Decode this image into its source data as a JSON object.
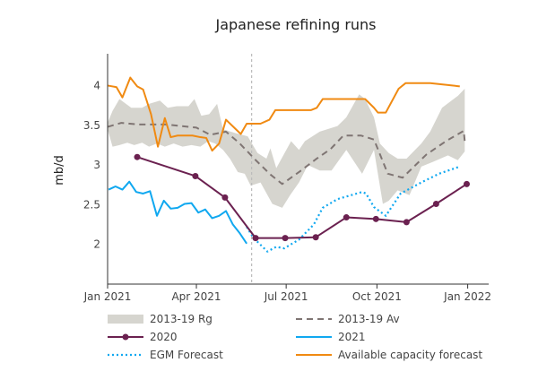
{
  "chart_data": {
    "type": "line",
    "title": "Japanese refining runs",
    "xlabel": "",
    "ylabel": "mb/d",
    "xlim": [
      "2021-01-01",
      "2022-01-25"
    ],
    "ylim": [
      1.5,
      4.4
    ],
    "x_ticks": [
      {
        "date": "2021-01-01",
        "label": "Jan 2021"
      },
      {
        "date": "2021-04-01",
        "label": "Apr 2021"
      },
      {
        "date": "2021-07-01",
        "label": "Jul 2021"
      },
      {
        "date": "2021-10-01",
        "label": "Oct 2021"
      },
      {
        "date": "2022-01-01",
        "label": "Jan 2022"
      }
    ],
    "y_ticks": [
      2,
      2.5,
      3,
      3.5,
      4
    ],
    "grid": false,
    "legend_position": "bottom",
    "forecast_divider": "2021-05-27",
    "band": {
      "name": "2013-19 Rg",
      "color": "#d6d5cf",
      "upper": [
        [
          "2021-01-01",
          3.53
        ],
        [
          "2021-01-06",
          3.68
        ],
        [
          "2021-01-13",
          3.83
        ],
        [
          "2021-01-25",
          3.72
        ],
        [
          "2021-02-05",
          3.72
        ],
        [
          "2021-02-12",
          3.77
        ],
        [
          "2021-02-23",
          3.81
        ],
        [
          "2021-03-03",
          3.72
        ],
        [
          "2021-03-12",
          3.74
        ],
        [
          "2021-03-24",
          3.74
        ],
        [
          "2021-03-30",
          3.83
        ],
        [
          "2021-04-06",
          3.62
        ],
        [
          "2021-04-14",
          3.64
        ],
        [
          "2021-04-22",
          3.77
        ],
        [
          "2021-04-28",
          3.45
        ],
        [
          "2021-05-11",
          3.4
        ],
        [
          "2021-05-23",
          3.36
        ],
        [
          "2021-06-02",
          3.15
        ],
        [
          "2021-06-11",
          3.08
        ],
        [
          "2021-06-15",
          3.21
        ],
        [
          "2021-06-21",
          2.96
        ],
        [
          "2021-07-06",
          3.3
        ],
        [
          "2021-07-14",
          3.19
        ],
        [
          "2021-07-20",
          3.3
        ],
        [
          "2021-08-04",
          3.42
        ],
        [
          "2021-08-22",
          3.49
        ],
        [
          "2021-08-31",
          3.6
        ],
        [
          "2021-09-13",
          3.89
        ],
        [
          "2021-09-19",
          3.83
        ],
        [
          "2021-09-28",
          3.6
        ],
        [
          "2021-10-04",
          3.27
        ],
        [
          "2021-10-13",
          3.15
        ],
        [
          "2021-10-22",
          3.08
        ],
        [
          "2021-10-31",
          3.08
        ],
        [
          "2021-11-15",
          3.27
        ],
        [
          "2021-11-24",
          3.42
        ],
        [
          "2021-12-06",
          3.72
        ],
        [
          "2021-12-22",
          3.87
        ],
        [
          "2021-12-29",
          3.96
        ]
      ],
      "lower": [
        [
          "2021-01-01",
          3.45
        ],
        [
          "2021-01-06",
          3.23
        ],
        [
          "2021-01-13",
          3.25
        ],
        [
          "2021-01-21",
          3.28
        ],
        [
          "2021-01-28",
          3.25
        ],
        [
          "2021-02-05",
          3.28
        ],
        [
          "2021-02-12",
          3.23
        ],
        [
          "2021-02-20",
          3.27
        ],
        [
          "2021-02-28",
          3.23
        ],
        [
          "2021-03-09",
          3.27
        ],
        [
          "2021-03-18",
          3.23
        ],
        [
          "2021-03-27",
          3.25
        ],
        [
          "2021-04-05",
          3.23
        ],
        [
          "2021-04-13",
          3.3
        ],
        [
          "2021-04-20",
          3.27
        ],
        [
          "2021-04-28",
          3.19
        ],
        [
          "2021-05-05",
          3.08
        ],
        [
          "2021-05-13",
          2.91
        ],
        [
          "2021-05-20",
          2.89
        ],
        [
          "2021-05-26",
          2.74
        ],
        [
          "2021-06-05",
          2.78
        ],
        [
          "2021-06-17",
          2.51
        ],
        [
          "2021-06-27",
          2.46
        ],
        [
          "2021-07-05",
          2.62
        ],
        [
          "2021-07-14",
          2.78
        ],
        [
          "2021-07-23",
          3.0
        ],
        [
          "2021-08-04",
          2.93
        ],
        [
          "2021-08-16",
          2.93
        ],
        [
          "2021-08-31",
          3.19
        ],
        [
          "2021-09-16",
          2.89
        ],
        [
          "2021-09-28",
          3.19
        ],
        [
          "2021-10-07",
          2.51
        ],
        [
          "2021-10-13",
          2.55
        ],
        [
          "2021-10-22",
          2.68
        ],
        [
          "2021-11-03",
          2.62
        ],
        [
          "2021-11-15",
          2.98
        ],
        [
          "2021-11-27",
          3.04
        ],
        [
          "2021-12-12",
          3.12
        ],
        [
          "2021-12-22",
          3.06
        ],
        [
          "2021-12-29",
          3.17
        ]
      ]
    },
    "series": [
      {
        "name": "2013-19 Av",
        "color": "#7f7573",
        "style": "dashed",
        "points": [
          [
            "2021-01-01",
            3.48
          ],
          [
            "2021-01-15",
            3.53
          ],
          [
            "2021-02-01",
            3.51
          ],
          [
            "2021-03-01",
            3.51
          ],
          [
            "2021-04-01",
            3.47
          ],
          [
            "2021-04-15",
            3.38
          ],
          [
            "2021-05-01",
            3.42
          ],
          [
            "2021-05-15",
            3.27
          ],
          [
            "2021-06-01",
            3.05
          ],
          [
            "2021-06-15",
            2.88
          ],
          [
            "2021-06-27",
            2.76
          ],
          [
            "2021-07-15",
            2.92
          ],
          [
            "2021-08-01",
            3.08
          ],
          [
            "2021-08-15",
            3.2
          ],
          [
            "2021-08-28",
            3.37
          ],
          [
            "2021-09-15",
            3.37
          ],
          [
            "2021-09-28",
            3.32
          ],
          [
            "2021-10-12",
            2.89
          ],
          [
            "2021-10-27",
            2.84
          ],
          [
            "2021-11-20",
            3.13
          ],
          [
            "2021-12-10",
            3.3
          ],
          [
            "2021-12-28",
            3.43
          ],
          [
            "2021-12-29",
            3.3
          ]
        ]
      },
      {
        "name": "2020",
        "color": "#6b2150",
        "style": "solid-markers",
        "points": [
          [
            "2021-01-31",
            3.1
          ],
          [
            "2021-03-31",
            2.86
          ],
          [
            "2021-04-30",
            2.59
          ],
          [
            "2021-05-31",
            2.08
          ],
          [
            "2021-06-30",
            2.08
          ],
          [
            "2021-07-31",
            2.09
          ],
          [
            "2021-08-31",
            2.34
          ],
          [
            "2021-09-30",
            2.32
          ],
          [
            "2021-10-31",
            2.28
          ],
          [
            "2021-11-30",
            2.51
          ],
          [
            "2021-12-31",
            2.76
          ]
        ]
      },
      {
        "name": "2021",
        "color": "#10a8f0",
        "style": "solid",
        "points": [
          [
            "2021-01-02",
            2.69
          ],
          [
            "2021-01-09",
            2.73
          ],
          [
            "2021-01-16",
            2.69
          ],
          [
            "2021-01-23",
            2.79
          ],
          [
            "2021-01-30",
            2.66
          ],
          [
            "2021-02-06",
            2.64
          ],
          [
            "2021-02-13",
            2.67
          ],
          [
            "2021-02-20",
            2.36
          ],
          [
            "2021-02-27",
            2.55
          ],
          [
            "2021-03-06",
            2.45
          ],
          [
            "2021-03-13",
            2.46
          ],
          [
            "2021-03-20",
            2.51
          ],
          [
            "2021-03-27",
            2.52
          ],
          [
            "2021-04-03",
            2.4
          ],
          [
            "2021-04-10",
            2.44
          ],
          [
            "2021-04-17",
            2.33
          ],
          [
            "2021-04-24",
            2.36
          ],
          [
            "2021-05-01",
            2.42
          ],
          [
            "2021-05-08",
            2.25
          ],
          [
            "2021-05-15",
            2.14
          ],
          [
            "2021-05-22",
            2.01
          ]
        ]
      },
      {
        "name": "EGM Forecast",
        "color": "#10a8f0",
        "style": "dotted",
        "points": [
          [
            "2021-05-22",
            2.22
          ],
          [
            "2021-05-29",
            2.08
          ],
          [
            "2021-06-12",
            1.91
          ],
          [
            "2021-06-21",
            1.97
          ],
          [
            "2021-06-29",
            1.95
          ],
          [
            "2021-07-14",
            2.06
          ],
          [
            "2021-07-29",
            2.25
          ],
          [
            "2021-08-07",
            2.46
          ],
          [
            "2021-08-22",
            2.57
          ],
          [
            "2021-09-16",
            2.66
          ],
          [
            "2021-09-20",
            2.64
          ],
          [
            "2021-09-28",
            2.47
          ],
          [
            "2021-10-10",
            2.36
          ],
          [
            "2021-10-25",
            2.64
          ],
          [
            "2021-11-15",
            2.78
          ],
          [
            "2021-12-03",
            2.89
          ],
          [
            "2021-12-24",
            2.98
          ]
        ]
      },
      {
        "name": "Available capacity forecast",
        "color": "#f08a12",
        "style": "solid",
        "points": [
          [
            "2021-01-01",
            4.0
          ],
          [
            "2021-01-10",
            3.98
          ],
          [
            "2021-01-16",
            3.85
          ],
          [
            "2021-01-24",
            4.1
          ],
          [
            "2021-01-31",
            3.99
          ],
          [
            "2021-02-06",
            3.95
          ],
          [
            "2021-02-14",
            3.64
          ],
          [
            "2021-02-21",
            3.23
          ],
          [
            "2021-02-28",
            3.59
          ],
          [
            "2021-03-06",
            3.35
          ],
          [
            "2021-03-13",
            3.37
          ],
          [
            "2021-03-28",
            3.37
          ],
          [
            "2021-04-05",
            3.35
          ],
          [
            "2021-04-11",
            3.34
          ],
          [
            "2021-04-17",
            3.18
          ],
          [
            "2021-04-24",
            3.27
          ],
          [
            "2021-05-01",
            3.57
          ],
          [
            "2021-05-16",
            3.39
          ],
          [
            "2021-05-22",
            3.52
          ],
          [
            "2021-06-05",
            3.52
          ],
          [
            "2021-06-14",
            3.57
          ],
          [
            "2021-06-20",
            3.69
          ],
          [
            "2021-07-26",
            3.69
          ],
          [
            "2021-08-01",
            3.72
          ],
          [
            "2021-08-07",
            3.83
          ],
          [
            "2021-09-19",
            3.83
          ],
          [
            "2021-09-28",
            3.72
          ],
          [
            "2021-10-02",
            3.66
          ],
          [
            "2021-10-10",
            3.66
          ],
          [
            "2021-10-23",
            3.96
          ],
          [
            "2021-10-30",
            4.03
          ],
          [
            "2021-11-24",
            4.03
          ],
          [
            "2021-12-24",
            3.99
          ]
        ]
      }
    ],
    "legend": [
      {
        "label": "2013-19 Rg",
        "kind": "band"
      },
      {
        "label": "2013-19 Av",
        "kind": "dashed"
      },
      {
        "label": "2020",
        "kind": "markers"
      },
      {
        "label": "2021",
        "kind": "solid"
      },
      {
        "label": "EGM Forecast",
        "kind": "dotted"
      },
      {
        "label": "Available capacity forecast",
        "kind": "solid"
      }
    ]
  }
}
